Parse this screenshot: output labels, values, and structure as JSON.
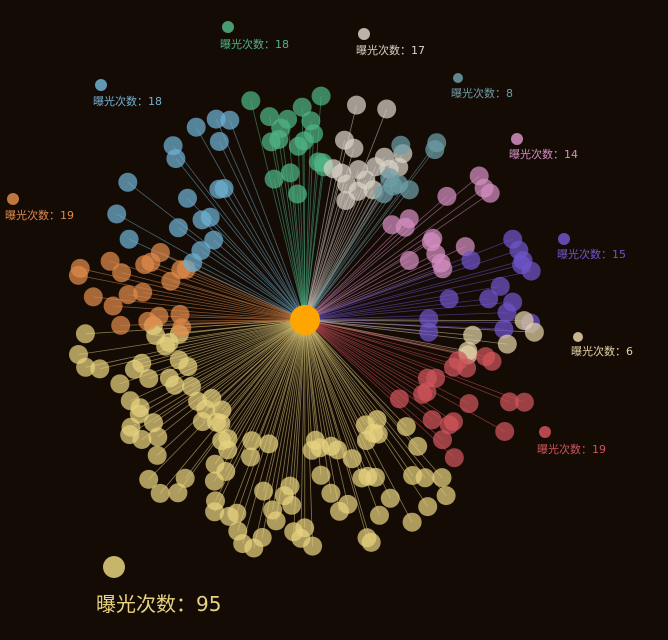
{
  "graph": {
    "center": {
      "color": "#ffa500"
    },
    "groups": [
      {
        "name": "exposure-count-top-green",
        "label": "曝光次数：18",
        "count": 18,
        "color": "#4fb587"
      },
      {
        "name": "exposure-count-top-white",
        "label": "曝光次数：17",
        "count": 17,
        "color": "#d8d2c8"
      },
      {
        "name": "exposure-count-top-teal",
        "label": "曝光次数：8",
        "count": 8,
        "color": "#6e9ea8"
      },
      {
        "name": "exposure-count-pink",
        "label": "曝光次数：14",
        "count": 14,
        "color": "#d58fc2"
      },
      {
        "name": "exposure-count-purple",
        "label": "曝光次数：15",
        "count": 15,
        "color": "#6f55cc"
      },
      {
        "name": "exposure-count-light",
        "label": "曝光次数：6",
        "count": 6,
        "color": "#e5d3a6"
      },
      {
        "name": "exposure-count-red",
        "label": "曝光次数：19",
        "count": 19,
        "color": "#d0545c"
      },
      {
        "name": "exposure-count-yellow-large",
        "label": "曝光次数：95",
        "count": 95,
        "color": "#e7d37f"
      },
      {
        "name": "exposure-count-orange",
        "label": "曝光次数：19",
        "count": 19,
        "color": "#e08a4a"
      },
      {
        "name": "exposure-count-blue",
        "label": "曝光次数：18",
        "count": 18,
        "color": "#6fb2d2"
      }
    ]
  }
}
